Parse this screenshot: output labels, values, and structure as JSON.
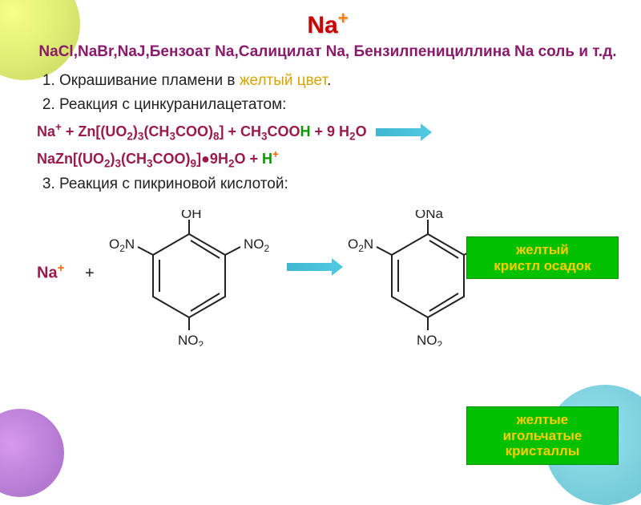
{
  "title": {
    "element": "Na",
    "charge": "+",
    "color_element": "#cc0000",
    "color_charge": "#ff8000"
  },
  "subtitle": "NaCl,NaBr,NaJ,Бензоат Na,Салицилат Na, Бензилпенициллина Na соль и т.д.",
  "subtitle_color": "#8a1a6a",
  "items": {
    "1": {
      "prefix": "Окрашивание пламени в ",
      "highlight": "желтый цвет",
      "suffix": ".",
      "highlight_color": "#d8a400"
    },
    "2": "Реакция с цинкуранилацетатом:",
    "3": "Реакция с пикриновой кислотой:"
  },
  "eq1_left": "Na",
  "eq1_sup": "+",
  "eq1_mid": " + Zn[(UO",
  "eq1_s1": "2",
  "eq1_a": ")",
  "eq1_s2": "3",
  "eq1_b": "(CH",
  "eq1_s3": "3",
  "eq1_c": "COO)",
  "eq1_s4": "8",
  "eq1_d": "] + CH",
  "eq1_s5": "3",
  "eq1_e": "COO",
  "eq1_H": "H",
  "eq1_f": " + 9 H",
  "eq1_s6": "2",
  "eq1_g": "O",
  "eq2_a": "NaZn[(UO",
  "eq2_s1": "2",
  "eq2_b": ")",
  "eq2_s2": "3",
  "eq2_c": "(CH",
  "eq2_s3": "3",
  "eq2_d": "COO)",
  "eq2_s4": "9",
  "eq2_e": "]●9H",
  "eq2_s5": "2",
  "eq2_f": "O + ",
  "eq2_H": "H",
  "callouts": {
    "1": "желтый\nкристл осадок",
    "2": "желтые\nигольчатые\nкристаллы"
  },
  "callout_bg": "#00c000",
  "callout_fg": "#ffcc00",
  "ring_labels": {
    "OH": "OH",
    "ONa": "ONa",
    "O2N": "O",
    "O2N_sub": "2",
    "O2N_tail": "N",
    "NO2": "NO",
    "NO2_sub": "2"
  },
  "r3": {
    "na": "Na",
    "plus": "+",
    "H": "H"
  },
  "colors": {
    "equation": "#9a1a4a",
    "green_H": "#0a9900",
    "blue_H": "#0066cc",
    "orange_sup": "#ff6600",
    "arrow": "#4fc7e1"
  }
}
